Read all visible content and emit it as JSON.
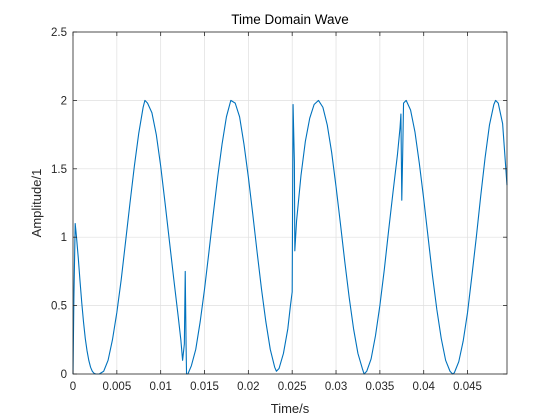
{
  "chart_data": {
    "type": "line",
    "title": "Time Domain Wave",
    "xlabel": "Time/s",
    "ylabel": "Amplitude/1",
    "xlim": [
      0,
      0.0495
    ],
    "ylim": [
      0,
      2.5
    ],
    "grid": true,
    "box": true,
    "x_ticks": [
      0,
      0.005,
      0.01,
      0.015,
      0.02,
      0.025,
      0.03,
      0.035,
      0.04,
      0.045
    ],
    "x_tick_labels": [
      "0",
      "0.005",
      "0.01",
      "0.015",
      "0.02",
      "0.025",
      "0.03",
      "0.035",
      "0.04",
      "0.045"
    ],
    "y_ticks": [
      0,
      0.5,
      1,
      1.5,
      2,
      2.5
    ],
    "y_tick_labels": [
      "0",
      "0.5",
      "1",
      "1.5",
      "2",
      "2.5"
    ],
    "series": [
      {
        "color": "#0072BD",
        "points": [
          [
            0,
            0
          ],
          [
            0.0001,
            0.55
          ],
          [
            0.00025,
            1.1
          ],
          [
            0.0004,
            1.0
          ],
          [
            0.0006,
            0.85
          ],
          [
            0.0008,
            0.68
          ],
          [
            0.001,
            0.52
          ],
          [
            0.0012,
            0.38
          ],
          [
            0.0014,
            0.26
          ],
          [
            0.0016,
            0.17
          ],
          [
            0.0018,
            0.1
          ],
          [
            0.002,
            0.05
          ],
          [
            0.0022,
            0.02
          ],
          [
            0.0024,
            0.005
          ],
          [
            0.0026,
            0.0
          ],
          [
            0.003,
            0.0
          ],
          [
            0.0035,
            0.02
          ],
          [
            0.004,
            0.1
          ],
          [
            0.0045,
            0.25
          ],
          [
            0.005,
            0.45
          ],
          [
            0.0055,
            0.69
          ],
          [
            0.006,
            0.97
          ],
          [
            0.0065,
            1.25
          ],
          [
            0.007,
            1.52
          ],
          [
            0.0075,
            1.76
          ],
          [
            0.008,
            1.95
          ],
          [
            0.0082,
            2.0
          ],
          [
            0.0085,
            1.98
          ],
          [
            0.009,
            1.91
          ],
          [
            0.0095,
            1.75
          ],
          [
            0.01,
            1.52
          ],
          [
            0.0105,
            1.25
          ],
          [
            0.011,
            0.97
          ],
          [
            0.0115,
            0.69
          ],
          [
            0.012,
            0.42
          ],
          [
            0.0123,
            0.25
          ],
          [
            0.0125,
            0.1
          ],
          [
            0.0127,
            0.22
          ],
          [
            0.0128,
            0.75
          ],
          [
            0.0129,
            0.2
          ],
          [
            0.01295,
            0.0
          ],
          [
            0.0131,
            0.0
          ],
          [
            0.0135,
            0.06
          ],
          [
            0.014,
            0.18
          ],
          [
            0.0145,
            0.38
          ],
          [
            0.015,
            0.62
          ],
          [
            0.0155,
            0.89
          ],
          [
            0.016,
            1.17
          ],
          [
            0.0165,
            1.44
          ],
          [
            0.017,
            1.68
          ],
          [
            0.0175,
            1.88
          ],
          [
            0.018,
            2.0
          ],
          [
            0.0185,
            1.98
          ],
          [
            0.019,
            1.88
          ],
          [
            0.0195,
            1.68
          ],
          [
            0.02,
            1.44
          ],
          [
            0.0205,
            1.17
          ],
          [
            0.021,
            0.89
          ],
          [
            0.0215,
            0.62
          ],
          [
            0.022,
            0.38
          ],
          [
            0.0225,
            0.18
          ],
          [
            0.023,
            0.05
          ],
          [
            0.0232,
            0.02
          ],
          [
            0.0235,
            0.04
          ],
          [
            0.024,
            0.15
          ],
          [
            0.0245,
            0.33
          ],
          [
            0.0248,
            0.5
          ],
          [
            0.025,
            0.6
          ],
          [
            0.0251,
            1.97
          ],
          [
            0.02525,
            1.55
          ],
          [
            0.0253,
            0.9
          ],
          [
            0.0255,
            1.12
          ],
          [
            0.026,
            1.45
          ],
          [
            0.0265,
            1.7
          ],
          [
            0.027,
            1.87
          ],
          [
            0.0275,
            1.97
          ],
          [
            0.028,
            2.0
          ],
          [
            0.0285,
            1.95
          ],
          [
            0.029,
            1.82
          ],
          [
            0.0295,
            1.62
          ],
          [
            0.03,
            1.37
          ],
          [
            0.0305,
            1.1
          ],
          [
            0.031,
            0.82
          ],
          [
            0.0315,
            0.56
          ],
          [
            0.032,
            0.33
          ],
          [
            0.0325,
            0.15
          ],
          [
            0.033,
            0.04
          ],
          [
            0.0332,
            0.0
          ],
          [
            0.0335,
            0.02
          ],
          [
            0.034,
            0.11
          ],
          [
            0.0345,
            0.28
          ],
          [
            0.035,
            0.5
          ],
          [
            0.0355,
            0.76
          ],
          [
            0.036,
            1.05
          ],
          [
            0.0365,
            1.33
          ],
          [
            0.037,
            1.6
          ],
          [
            0.0373,
            1.8
          ],
          [
            0.0374,
            1.9
          ],
          [
            0.0375,
            1.27
          ],
          [
            0.0376,
            1.6
          ],
          [
            0.0377,
            1.98
          ],
          [
            0.038,
            2.0
          ],
          [
            0.0385,
            1.93
          ],
          [
            0.039,
            1.77
          ],
          [
            0.0395,
            1.54
          ],
          [
            0.04,
            1.28
          ],
          [
            0.0405,
            1.0
          ],
          [
            0.041,
            0.72
          ],
          [
            0.0415,
            0.47
          ],
          [
            0.042,
            0.26
          ],
          [
            0.0425,
            0.1
          ],
          [
            0.043,
            0.02
          ],
          [
            0.0433,
            0.0
          ],
          [
            0.0435,
            0.01
          ],
          [
            0.044,
            0.09
          ],
          [
            0.0445,
            0.24
          ],
          [
            0.045,
            0.45
          ],
          [
            0.0455,
            0.72
          ],
          [
            0.046,
            1.0
          ],
          [
            0.0465,
            1.3
          ],
          [
            0.047,
            1.58
          ],
          [
            0.0475,
            1.82
          ],
          [
            0.048,
            1.97
          ],
          [
            0.0482,
            2.0
          ],
          [
            0.0485,
            1.98
          ],
          [
            0.049,
            1.83
          ],
          [
            0.0495,
            1.38
          ]
        ]
      }
    ]
  }
}
